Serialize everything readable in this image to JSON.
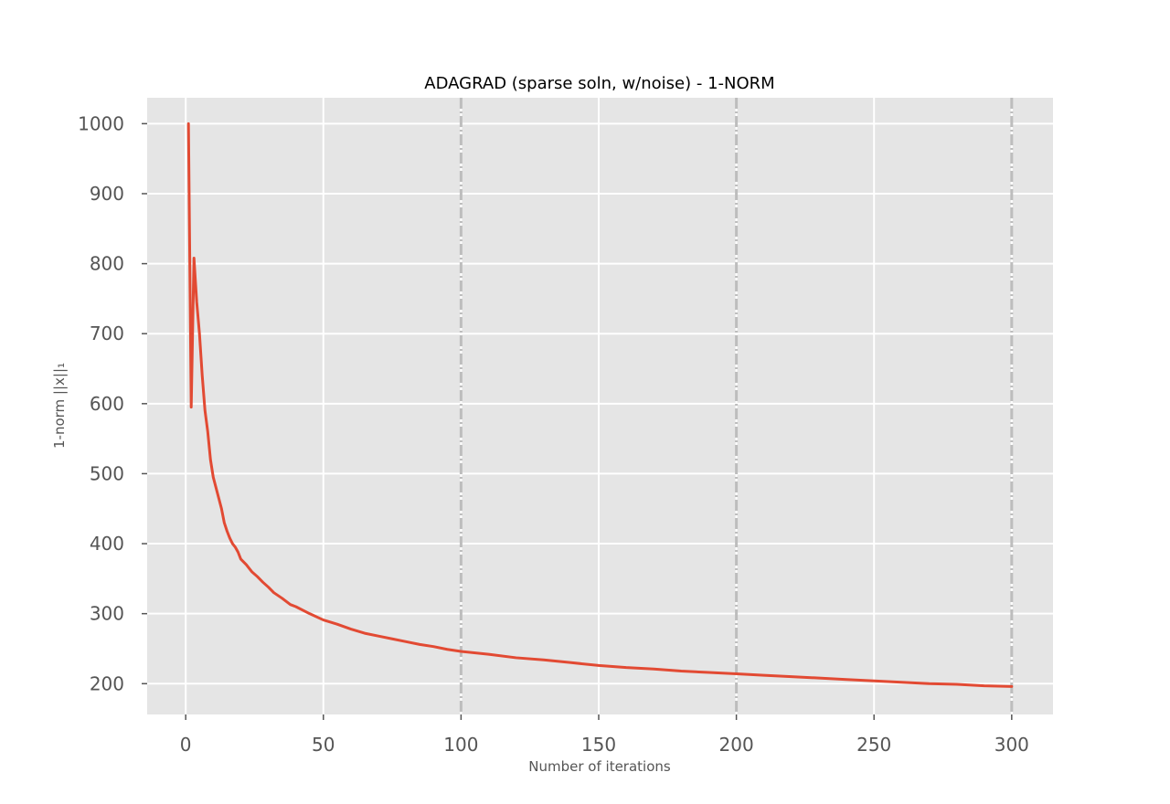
{
  "chart_data": {
    "type": "line",
    "title": "ADAGRAD (sparse soln, w/noise) - 1-NORM",
    "xlabel": "Number of iterations",
    "ylabel": "1-norm ||x||₁",
    "xlim": [
      -14,
      315
    ],
    "ylim": [
      156,
      1037
    ],
    "xticks": [
      0,
      50,
      100,
      150,
      200,
      250,
      300
    ],
    "yticks": [
      200,
      300,
      400,
      500,
      600,
      700,
      800,
      900,
      1000
    ],
    "grid": true,
    "legend": "none",
    "vlines": [
      100,
      200,
      300
    ],
    "series": [
      {
        "color": "#E24A33",
        "points": [
          [
            1,
            1000
          ],
          [
            2,
            595
          ],
          [
            3,
            808
          ],
          [
            4,
            745
          ],
          [
            5,
            700
          ],
          [
            6,
            640
          ],
          [
            7,
            590
          ],
          [
            8,
            560
          ],
          [
            9,
            520
          ],
          [
            10,
            495
          ],
          [
            11,
            480
          ],
          [
            12,
            465
          ],
          [
            13,
            450
          ],
          [
            14,
            430
          ],
          [
            15,
            418
          ],
          [
            16,
            408
          ],
          [
            17,
            400
          ],
          [
            18,
            395
          ],
          [
            19,
            388
          ],
          [
            20,
            378
          ],
          [
            22,
            370
          ],
          [
            24,
            360
          ],
          [
            26,
            353
          ],
          [
            28,
            345
          ],
          [
            30,
            338
          ],
          [
            32,
            330
          ],
          [
            35,
            322
          ],
          [
            38,
            313
          ],
          [
            40,
            310
          ],
          [
            45,
            300
          ],
          [
            50,
            291
          ],
          [
            55,
            285
          ],
          [
            60,
            278
          ],
          [
            65,
            272
          ],
          [
            70,
            268
          ],
          [
            75,
            264
          ],
          [
            80,
            260
          ],
          [
            85,
            256
          ],
          [
            90,
            253
          ],
          [
            95,
            249
          ],
          [
            100,
            246
          ],
          [
            110,
            242
          ],
          [
            120,
            237
          ],
          [
            130,
            234
          ],
          [
            140,
            230
          ],
          [
            150,
            226
          ],
          [
            160,
            223
          ],
          [
            170,
            221
          ],
          [
            180,
            218
          ],
          [
            190,
            216
          ],
          [
            200,
            214
          ],
          [
            210,
            212
          ],
          [
            220,
            210
          ],
          [
            230,
            208
          ],
          [
            240,
            206
          ],
          [
            250,
            204
          ],
          [
            260,
            202
          ],
          [
            270,
            200
          ],
          [
            280,
            199
          ],
          [
            290,
            197
          ],
          [
            300,
            196
          ]
        ]
      }
    ]
  },
  "colors": {
    "plot_background": "#E5E5E5",
    "grid": "#FFFFFF",
    "line": "#E24A33",
    "vline": "#BDBDBD"
  }
}
